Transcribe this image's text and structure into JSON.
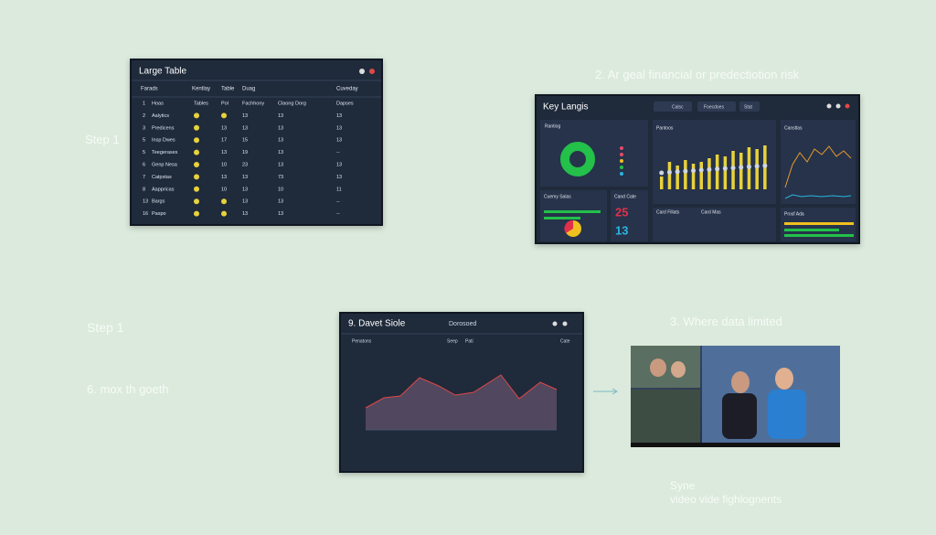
{
  "steps": {
    "step_a": "Step 1",
    "step_b": "Step 1",
    "note_a": "2. Ar geal financial or predectiotion risk",
    "note_b": "6. mox th goeth",
    "note_c": "3. Where data limited",
    "caption": [
      "Syne",
      "video vide fighlognents"
    ]
  },
  "large_table": {
    "title": "Large Table",
    "headers": [
      "Farads",
      "Kentlay",
      "Table",
      "Duag",
      "Cuveday"
    ],
    "rows": [
      [
        "1",
        "Hoas",
        "Tables",
        "Pol",
        "Fachhony",
        "Claong Dorg",
        "Dapses"
      ],
      [
        "2",
        "Aalytics",
        null,
        null,
        "13",
        "13",
        "13"
      ],
      [
        "3",
        "Predicens",
        null,
        "13",
        "13",
        "13",
        "13"
      ],
      [
        "5",
        "Insp Dwes",
        null,
        "17",
        "15",
        "13",
        "13"
      ],
      [
        "5",
        "Teegerases",
        null,
        "13",
        "19",
        "13",
        "--"
      ],
      [
        "6",
        "Genp Nesa",
        null,
        "10",
        "23",
        "13",
        "13"
      ],
      [
        "7",
        "Catpstas",
        null,
        "13",
        "13",
        "73",
        "13"
      ],
      [
        "8",
        "Aappricas",
        null,
        "10",
        "13",
        "10",
        "11"
      ],
      [
        "13",
        "Bargs",
        null,
        null,
        "13",
        "13",
        "--"
      ],
      [
        "16",
        "Paspo",
        null,
        null,
        "13",
        "13",
        "--"
      ]
    ]
  },
  "dashboard": {
    "title": "Key Langis",
    "tabs": [
      "Calsc",
      "Foecdoes",
      "Stat"
    ],
    "panels": [
      "Rantiog",
      "Pantoos",
      "Canstlas",
      "Cuemy Salas",
      "Cand Cate",
      "Card Fillats",
      "Card Mas",
      "Prosf Ada"
    ],
    "kpis": [
      "25",
      "13"
    ]
  },
  "detail_panel": {
    "title": "9. Davet Siole",
    "subtitle": "Dorosoed",
    "labels": [
      "Penatons",
      "Seep",
      "Pati",
      "Cate"
    ]
  }
}
